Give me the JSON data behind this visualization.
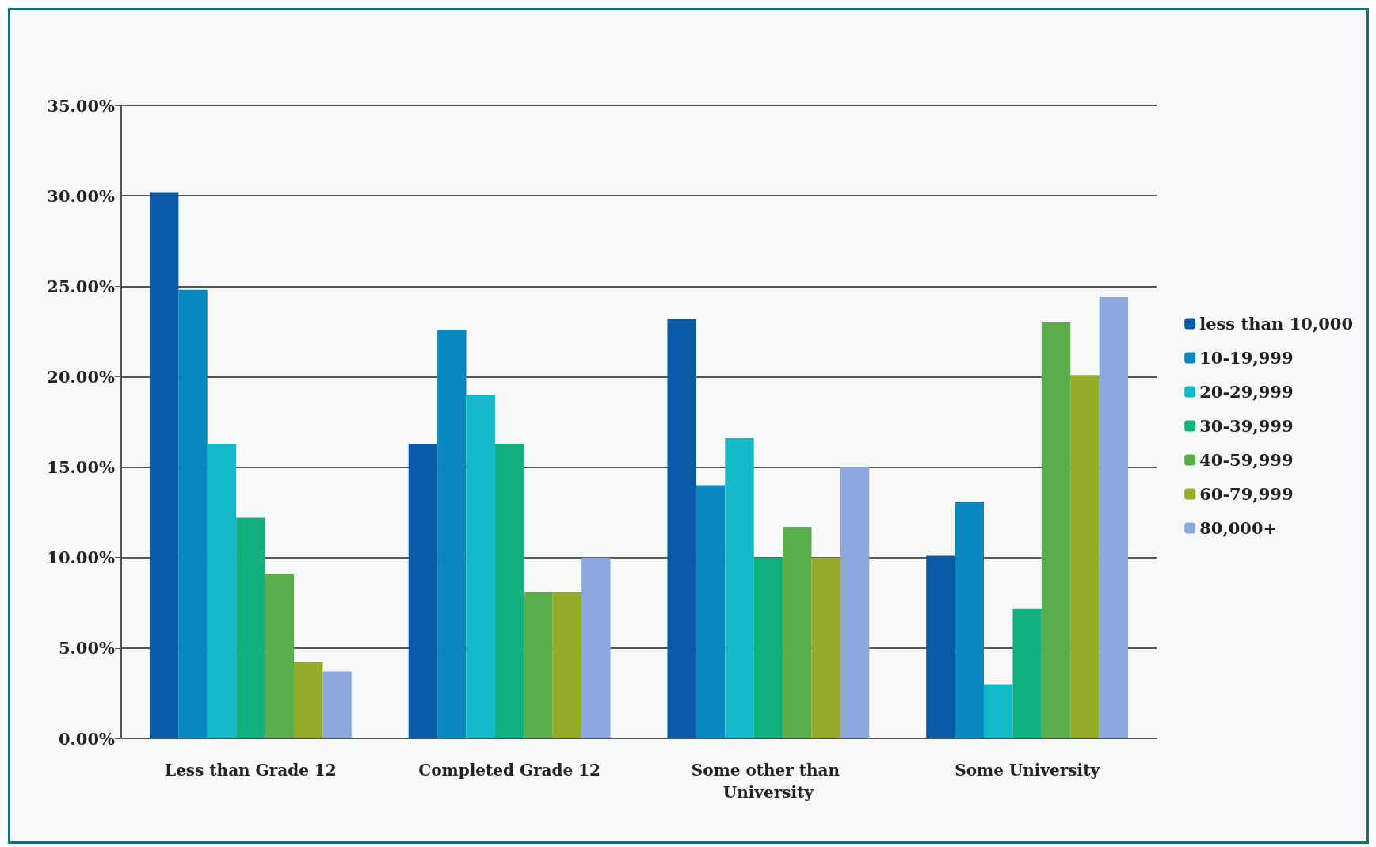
{
  "chart_data": {
    "type": "bar",
    "categories": [
      "Less than Grade 12",
      "Completed Grade 12",
      "Some other than University",
      "Some University"
    ],
    "series": [
      {
        "name": "less than 10,000",
        "color": "#0b5aa8",
        "values": [
          30.2,
          16.3,
          23.2,
          10.1
        ]
      },
      {
        "name": "10-19,999",
        "color": "#0a86c0",
        "values": [
          24.8,
          22.6,
          14.0,
          13.1
        ]
      },
      {
        "name": "20-29,999",
        "color": "#14b9c9",
        "values": [
          16.3,
          19.0,
          16.6,
          3.0
        ]
      },
      {
        "name": "30-39,999",
        "color": "#13b07f",
        "values": [
          12.2,
          16.3,
          10.0,
          7.2
        ]
      },
      {
        "name": "40-59,999",
        "color": "#5aad4a",
        "values": [
          9.1,
          8.1,
          11.7,
          23.0
        ]
      },
      {
        "name": "60-79,999",
        "color": "#96ab2a",
        "values": [
          4.2,
          8.1,
          10.0,
          20.1
        ]
      },
      {
        "name": "80,000+",
        "color": "#8ca8dc",
        "values": [
          3.7,
          10.0,
          15.0,
          24.4
        ]
      }
    ],
    "ylim": [
      0,
      35
    ],
    "yticks": [
      {
        "value": 0,
        "label": "0.00%"
      },
      {
        "value": 5,
        "label": "5.00%"
      },
      {
        "value": 10,
        "label": "10.00%"
      },
      {
        "value": 15,
        "label": "15.00%"
      },
      {
        "value": 20,
        "label": "20.00%"
      },
      {
        "value": 25,
        "label": "25.00%"
      },
      {
        "value": 30,
        "label": "30.00%"
      },
      {
        "value": 35,
        "label": "35.00%"
      }
    ],
    "grid": "y",
    "legend": "right"
  }
}
